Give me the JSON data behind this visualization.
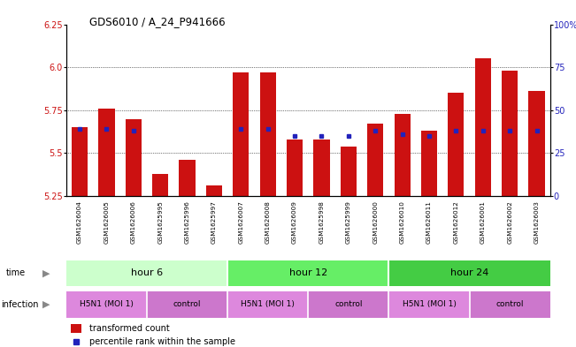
{
  "title": "GDS6010 / A_24_P941666",
  "samples": [
    "GSM1626004",
    "GSM1626005",
    "GSM1626006",
    "GSM1625995",
    "GSM1625996",
    "GSM1625997",
    "GSM1626007",
    "GSM1626008",
    "GSM1626009",
    "GSM1625998",
    "GSM1625999",
    "GSM1626000",
    "GSM1626010",
    "GSM1626011",
    "GSM1626012",
    "GSM1626001",
    "GSM1626002",
    "GSM1626003"
  ],
  "transformed_counts": [
    5.65,
    5.76,
    5.7,
    5.38,
    5.46,
    5.31,
    5.97,
    5.97,
    5.58,
    5.58,
    5.54,
    5.67,
    5.73,
    5.63,
    5.85,
    6.05,
    5.98,
    5.86
  ],
  "percentile_ranks_leftscale": [
    5.64,
    5.64,
    5.63,
    null,
    null,
    null,
    5.64,
    5.64,
    5.6,
    5.6,
    5.6,
    5.63,
    5.61,
    5.6,
    5.63,
    5.63,
    5.63,
    5.63
  ],
  "ylim_left": [
    5.25,
    6.25
  ],
  "ylim_right": [
    0,
    100
  ],
  "yticks_left": [
    5.25,
    5.5,
    5.75,
    6.0,
    6.25
  ],
  "yticks_right": [
    0,
    25,
    50,
    75,
    100
  ],
  "ytick_labels_right": [
    "0",
    "25",
    "50",
    "75",
    "100%"
  ],
  "bar_color": "#cc1111",
  "dot_color": "#2222bb",
  "baseline": 5.25,
  "time_row_color_h6": "#ccffcc",
  "time_row_color_h12": "#66ee66",
  "time_row_color_h24": "#44cc44",
  "infect_h5n1_color": "#dd88dd",
  "infect_control_color": "#cc77cc",
  "sample_bg_color": "#d8d8d8",
  "legend_bar_color": "#cc1111",
  "legend_dot_color": "#2222bb"
}
